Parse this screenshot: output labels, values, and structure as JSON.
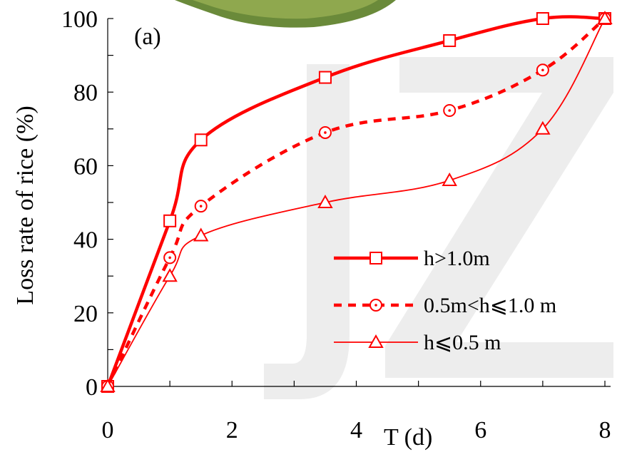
{
  "chart_data": {
    "type": "line",
    "panel_label": "(a)",
    "xlabel": "T (d)",
    "ylabel": "Loss rate of rice (%)",
    "xlim": [
      0,
      8
    ],
    "ylim": [
      0,
      100
    ],
    "xticks": [
      0,
      2,
      4,
      6,
      8
    ],
    "yticks": [
      0,
      20,
      40,
      60,
      80,
      100
    ],
    "grid": false,
    "legend_position": "bottom-right",
    "series": [
      {
        "name": "h>1.0m",
        "marker": "square",
        "line_style": "thick-solid",
        "color": "#ff0000",
        "x": [
          0,
          1,
          1.5,
          3.5,
          5.5,
          7,
          8
        ],
        "y": [
          0,
          45,
          67,
          84,
          94,
          100,
          100
        ]
      },
      {
        "name": "0.5m<h⩽1.0 m",
        "marker": "circle",
        "line_style": "dashed",
        "color": "#ff0000",
        "x": [
          0,
          1,
          1.5,
          3.5,
          5.5,
          7,
          8
        ],
        "y": [
          0,
          35,
          49,
          69,
          75,
          86,
          100
        ]
      },
      {
        "name": "h⩽0.5 m",
        "marker": "triangle",
        "line_style": "thin-solid",
        "color": "#ff0000",
        "x": [
          0,
          1,
          1.5,
          3.5,
          5.5,
          7,
          8
        ],
        "y": [
          0,
          30,
          41,
          50,
          56,
          70,
          100
        ]
      }
    ]
  }
}
